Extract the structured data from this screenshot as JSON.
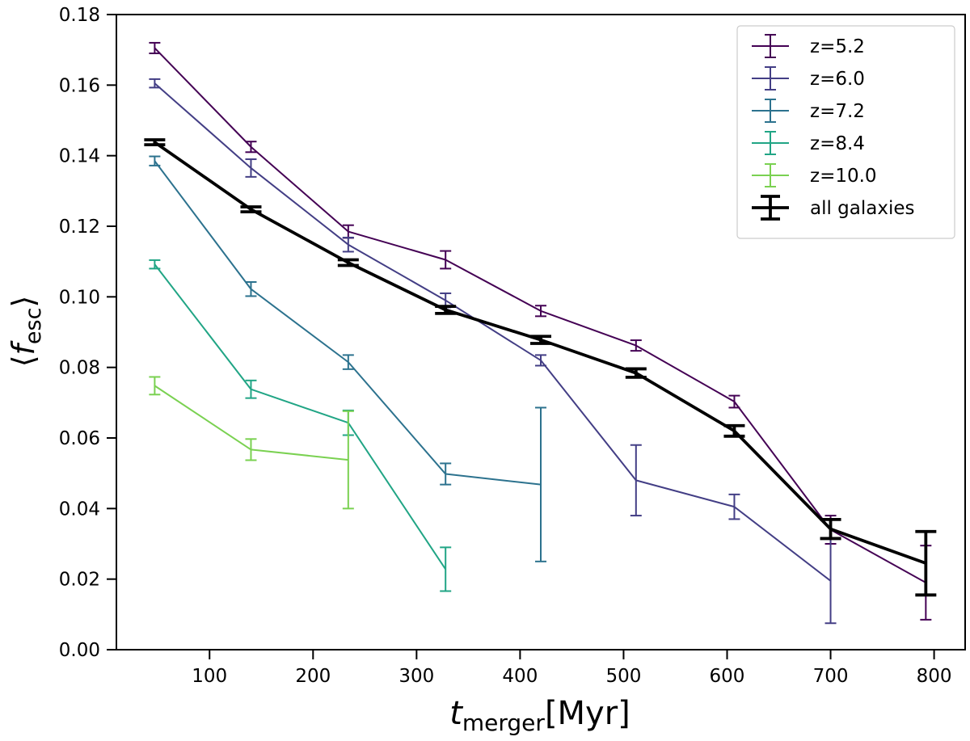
{
  "chart_data": {
    "type": "line",
    "title": "",
    "xlabel": {
      "main": "t",
      "sub": "merger",
      "unit": "[Myr]"
    },
    "ylabel": {
      "open": "⟨",
      "main": "f",
      "sub": "esc",
      "close": "⟩"
    },
    "xlim": [
      10,
      830
    ],
    "ylim": [
      0.0,
      0.18
    ],
    "xticks": [
      100,
      200,
      300,
      400,
      500,
      600,
      700,
      800
    ],
    "xtick_labels": [
      "100",
      "200",
      "300",
      "400",
      "500",
      "600",
      "700",
      "800"
    ],
    "yticks": [
      0.0,
      0.02,
      0.04,
      0.06,
      0.08,
      0.1,
      0.12,
      0.14,
      0.16,
      0.18
    ],
    "ytick_labels": [
      "0.00",
      "0.02",
      "0.04",
      "0.06",
      "0.08",
      "0.10",
      "0.12",
      "0.14",
      "0.16",
      "0.18"
    ],
    "grid": false,
    "legend_position": "top-right",
    "series": [
      {
        "name": "z=5.2",
        "color": "#440154",
        "width": 2,
        "x": [
          47,
          140,
          234,
          328,
          420,
          512,
          607,
          700,
          792
        ],
        "y": [
          0.1705,
          0.1425,
          0.1185,
          0.1105,
          0.096,
          0.0862,
          0.0703,
          0.034,
          0.019
        ],
        "err": [
          0.0015,
          0.0015,
          0.0018,
          0.0025,
          0.0015,
          0.0015,
          0.0017,
          0.004,
          0.0105
        ]
      },
      {
        "name": "z=6.0",
        "color": "#433e85",
        "width": 2,
        "x": [
          47,
          140,
          234,
          328,
          420,
          512,
          607,
          700
        ],
        "y": [
          0.1605,
          0.1365,
          0.1148,
          0.099,
          0.082,
          0.048,
          0.0405,
          0.0195
        ],
        "err": [
          0.0012,
          0.0025,
          0.002,
          0.002,
          0.0015,
          0.01,
          0.0035,
          0.012
        ]
      },
      {
        "name": "z=7.2",
        "color": "#2c728e",
        "width": 2,
        "x": [
          47,
          140,
          234,
          328,
          420
        ],
        "y": [
          0.1385,
          0.1022,
          0.0815,
          0.0498,
          0.0468
        ],
        "err": [
          0.0013,
          0.002,
          0.002,
          0.003,
          0.0218
        ]
      },
      {
        "name": "z=8.4",
        "color": "#21a585",
        "width": 2,
        "x": [
          47,
          140,
          234,
          328
        ],
        "y": [
          0.1092,
          0.0738,
          0.0643,
          0.0228
        ],
        "err": [
          0.0012,
          0.0025,
          0.0035,
          0.0062
        ]
      },
      {
        "name": "z=10.0",
        "color": "#7ad151",
        "width": 2,
        "x": [
          47,
          140,
          234
        ],
        "y": [
          0.0748,
          0.0567,
          0.0538
        ],
        "err": [
          0.0025,
          0.003,
          0.0138
        ]
      },
      {
        "name": "all galaxies",
        "color": "#000000",
        "width": 3.8,
        "x": [
          47,
          140,
          234,
          328,
          420,
          512,
          607,
          700,
          792
        ],
        "y": [
          0.1438,
          0.1248,
          0.1097,
          0.0963,
          0.0878,
          0.0784,
          0.062,
          0.0342,
          0.0245
        ],
        "err": [
          0.0007,
          0.0007,
          0.0008,
          0.001,
          0.001,
          0.0012,
          0.0015,
          0.0027,
          0.009
        ]
      }
    ]
  }
}
